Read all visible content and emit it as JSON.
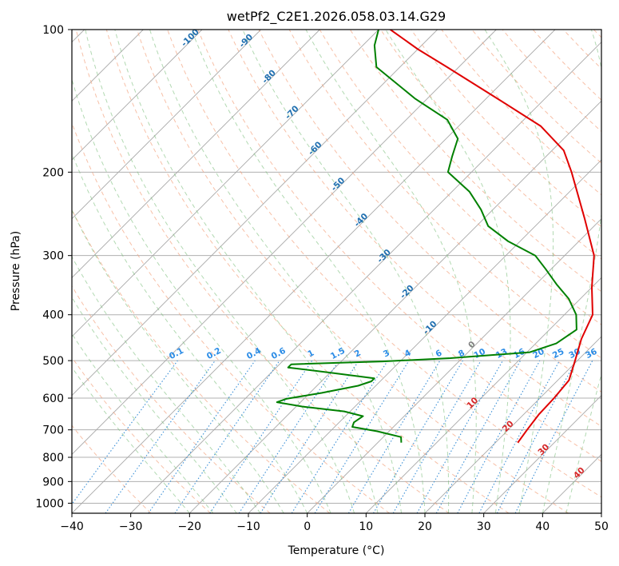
{
  "chart_data": {
    "type": "skew-t",
    "title": "wetPf2_C2E1.2026.058.03.14.G29",
    "xlabel": "Temperature (°C)",
    "ylabel": "Pressure (hPa)",
    "xlim": [
      -40,
      50
    ],
    "ylim": [
      1050,
      100
    ],
    "y_scale": "log",
    "grid": true,
    "x_ticks": [
      "−40",
      "−30",
      "−20",
      "−10",
      "0",
      "10",
      "20",
      "30",
      "40",
      "50"
    ],
    "y_ticks": [
      "100",
      "200",
      "300",
      "400",
      "500",
      "600",
      "700",
      "800",
      "900",
      "1000"
    ],
    "isotherm_labels": [
      "-100",
      "-90",
      "-80",
      "-70",
      "-60",
      "-50",
      "-40",
      "-30",
      "-20",
      "-10",
      "0",
      "10",
      "20",
      "30",
      "40"
    ],
    "mixing_ratio_labels": [
      "0.1",
      "0.2",
      "0.4",
      "0.6",
      "1",
      "1.5",
      "2",
      "3",
      "4",
      "6",
      "8",
      "10",
      "13",
      "16",
      "20",
      "25",
      "30",
      "36"
    ],
    "series": [
      {
        "key": "temperature",
        "color": "#e00000",
        "points": [
          [
            745,
            23.8
          ],
          [
            700,
            23.2
          ],
          [
            650,
            22.6
          ],
          [
            600,
            22.4
          ],
          [
            550,
            21.9
          ],
          [
            500,
            19.6
          ],
          [
            450,
            17.0
          ],
          [
            400,
            14.8
          ],
          [
            350,
            10.0
          ],
          [
            300,
            5.0
          ],
          [
            250,
            -3.0
          ],
          [
            200,
            -13.0
          ],
          [
            180,
            -18.0
          ],
          [
            160,
            -26.0
          ],
          [
            140,
            -38.0
          ],
          [
            120,
            -52.0
          ],
          [
            110,
            -60.0
          ],
          [
            100,
            -68.0
          ]
        ]
      },
      {
        "key": "dewpoint",
        "color": "#008000",
        "points": [
          [
            745,
            4.0
          ],
          [
            725,
            3.0
          ],
          [
            705,
            -2.0
          ],
          [
            690,
            -7.0
          ],
          [
            675,
            -7.5
          ],
          [
            655,
            -7.0
          ],
          [
            640,
            -11.0
          ],
          [
            625,
            -19.0
          ],
          [
            612,
            -24.0
          ],
          [
            602,
            -23.0
          ],
          [
            585,
            -18.0
          ],
          [
            565,
            -13.0
          ],
          [
            553,
            -11.5
          ],
          [
            545,
            -11.5
          ],
          [
            530,
            -20.0
          ],
          [
            517,
            -28.0
          ],
          [
            509,
            -28.0
          ],
          [
            502,
            -13.0
          ],
          [
            494,
            -2.0
          ],
          [
            480,
            10.5
          ],
          [
            460,
            13.5
          ],
          [
            430,
            14.6
          ],
          [
            400,
            12.0
          ],
          [
            370,
            8.0
          ],
          [
            345,
            3.5
          ],
          [
            320,
            -1.0
          ],
          [
            300,
            -5.0
          ],
          [
            280,
            -12.0
          ],
          [
            260,
            -18.0
          ],
          [
            240,
            -22.0
          ],
          [
            220,
            -27.0
          ],
          [
            200,
            -34.0
          ],
          [
            185,
            -36.0
          ],
          [
            170,
            -38.0
          ],
          [
            155,
            -43.0
          ],
          [
            140,
            -52.0
          ],
          [
            120,
            -64.0
          ],
          [
            108,
            -68.0
          ],
          [
            100,
            -70.0
          ]
        ]
      }
    ]
  }
}
